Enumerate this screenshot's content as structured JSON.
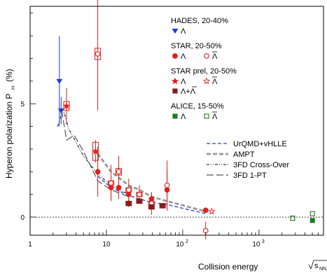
{
  "chart_data": {
    "type": "scatter",
    "title": "",
    "xlabel": "Collision energy",
    "xlabel_math": {
      "base": "s",
      "sub": "NN",
      "unit": "(GeV)"
    },
    "ylabel": "Hyperon polarization P",
    "ylabel_sub": "H",
    "ylabel_unit": "(%)",
    "xscale": "log",
    "xlim": [
      1,
      7000
    ],
    "ylim": [
      -0.8,
      9.3
    ],
    "x_ticks": [
      {
        "v": 1,
        "label": "1"
      },
      {
        "v": 10,
        "label": "10"
      },
      {
        "v": 100,
        "label": "10",
        "sup": "2"
      },
      {
        "v": 1000,
        "label": "10",
        "sup": "3"
      }
    ],
    "y_ticks": [
      {
        "v": 0,
        "label": "0"
      },
      {
        "v": 5,
        "label": "5"
      }
    ],
    "zero_line": true,
    "legend_position": "top-right",
    "legend_groups": [
      {
        "title": "HADES, 20-40%",
        "entries": [
          {
            "marker": "tri-down",
            "color": "#1a3fd6",
            "fill": true,
            "label": "Λ"
          }
        ]
      },
      {
        "title": "STAR, 20-50%",
        "entries": [
          {
            "marker": "circle",
            "color": "#e0201d",
            "fill": true,
            "label": "Λ"
          },
          {
            "marker": "circle",
            "color": "#e0201d",
            "fill": false,
            "label": "Λ",
            "bar": true
          }
        ]
      },
      {
        "title": "STAR prel, 20-50%",
        "entries": [
          {
            "marker": "star",
            "color": "#e0201d",
            "fill": true,
            "label": "Λ"
          },
          {
            "marker": "star",
            "color": "#e0201d",
            "fill": false,
            "label": "Λ",
            "bar": true
          },
          {
            "marker": "square",
            "color": "#8b1a1a",
            "fill": true,
            "label": "Λ+Λ",
            "bar_second": true
          }
        ]
      },
      {
        "title": "ALICE, 15-50%",
        "entries": [
          {
            "marker": "square",
            "color": "#1e7a1e",
            "fill": true,
            "label": "Λ"
          },
          {
            "marker": "square",
            "color": "#1e7a1e",
            "fill": false,
            "label": "Λ",
            "bar": true
          }
        ]
      }
    ],
    "model_legend": [
      {
        "name": "UrQMD+vHLLE",
        "style": "blue-dash"
      },
      {
        "name": "AMPT",
        "style": "gray-dash"
      },
      {
        "name": "3FD Cross-Over",
        "style": "dashdotdot"
      },
      {
        "name": "3FD 1-PT",
        "style": "longdash"
      }
    ],
    "series": [
      {
        "name": "HADES Λ",
        "marker": "tri-down",
        "color": "#1a3fd6",
        "fill": true,
        "points": [
          {
            "x": 2.42,
            "y": 6.0,
            "err": 2.0,
            "sys": 0
          },
          {
            "x": 2.55,
            "y": 4.7,
            "err": 0.6,
            "sys": 0
          }
        ]
      },
      {
        "name": "STAR Λ",
        "marker": "circle",
        "color": "#e0201d",
        "fill": true,
        "points": [
          {
            "x": 7.7,
            "y": 2.0,
            "err": 1.1,
            "sys": 0
          },
          {
            "x": 11.5,
            "y": 1.3,
            "err": 0.5,
            "sys": 0
          },
          {
            "x": 14.5,
            "y": 1.3,
            "err": 0.5,
            "sys": 0
          },
          {
            "x": 19.6,
            "y": 1.0,
            "err": 0.3,
            "sys": 0
          },
          {
            "x": 27,
            "y": 1.0,
            "err": 0.3,
            "sys": 0
          },
          {
            "x": 39,
            "y": 0.8,
            "err": 0.3,
            "sys": 0
          },
          {
            "x": 62.4,
            "y": 1.2,
            "err": 0.9,
            "sys": 0
          },
          {
            "x": 200,
            "y": 0.3,
            "err": 0.1,
            "sys": 0
          }
        ]
      },
      {
        "name": "STAR Λbar",
        "marker": "circle",
        "color": "#e0201d",
        "fill": false,
        "points": [
          {
            "x": 7.7,
            "y": 7.2,
            "err": 2.5,
            "sys": 0.25
          },
          {
            "x": 11.5,
            "y": 1.5,
            "err": 0.8,
            "sys": 0.1
          },
          {
            "x": 14.5,
            "y": 2.0,
            "err": 0.7,
            "sys": 0.15
          },
          {
            "x": 19.6,
            "y": 1.2,
            "err": 0.5,
            "sys": 0.1
          },
          {
            "x": 27,
            "y": 1.0,
            "err": 0.4,
            "sys": 0.1
          },
          {
            "x": 39,
            "y": 0.6,
            "err": 0.5,
            "sys": 0.1
          },
          {
            "x": 62.4,
            "y": 1.4,
            "err": 1.1,
            "sys": 0
          },
          {
            "x": 200,
            "y": -0.6,
            "err": 0.4,
            "sys": 0
          }
        ]
      },
      {
        "name": "STAR prel Λ",
        "marker": "star",
        "color": "#e0201d",
        "fill": true,
        "points": [
          {
            "x": 3.0,
            "y": 4.9,
            "err": 0.8,
            "sys": 0.2
          },
          {
            "x": 7.2,
            "y": 2.9,
            "err": 0.5,
            "sys": 0.4
          }
        ]
      },
      {
        "name": "STAR prel Λbar",
        "marker": "star",
        "color": "#e0201d",
        "fill": false,
        "points": [
          {
            "x": 240,
            "y": 0.25,
            "err": 0.1,
            "sys": 0
          }
        ]
      },
      {
        "name": "STAR prel Λ+Λbar",
        "marker": "square",
        "color": "#8b1a1a",
        "fill": true,
        "points": [
          {
            "x": 19.6,
            "y": 0.6,
            "err": 0.15,
            "sys": 0.1
          },
          {
            "x": 27,
            "y": 0.7,
            "err": 0.1,
            "sys": 0.1
          },
          {
            "x": 39,
            "y": 0.45,
            "err": 0.1,
            "sys": 0.1
          },
          {
            "x": 54.4,
            "y": 0.5,
            "err": 0.1,
            "sys": 0.1
          }
        ]
      },
      {
        "name": "ALICE Λ",
        "marker": "square",
        "color": "#1e7a1e",
        "fill": true,
        "points": [
          {
            "x": 2760,
            "y": -0.05,
            "err": 0.05,
            "sys": 0
          },
          {
            "x": 5020,
            "y": -0.15,
            "err": 0.05,
            "sys": 0
          }
        ]
      },
      {
        "name": "ALICE Λbar",
        "marker": "square",
        "color": "#1e7a1e",
        "fill": false,
        "points": [
          {
            "x": 2760,
            "y": -0.05,
            "err": 0.05,
            "sys": 0
          },
          {
            "x": 5020,
            "y": 0.15,
            "err": 0.05,
            "sys": 0
          }
        ]
      }
    ],
    "models": [
      {
        "name": "UrQMD+vHLLE",
        "style": "blue-dash",
        "x": [
          7.7,
          11.5,
          19.6,
          27,
          39,
          62.4,
          200
        ],
        "y": [
          1.8,
          1.3,
          0.95,
          0.8,
          0.65,
          0.55,
          0.15
        ]
      },
      {
        "name": "AMPT",
        "style": "gray-dash",
        "x": [
          7.7,
          11.5,
          19.6,
          27,
          39,
          62.4,
          200
        ],
        "y": [
          2.8,
          2.0,
          1.4,
          1.2,
          0.9,
          0.7,
          0.25
        ]
      },
      {
        "name": "3FD Cross-Over",
        "style": "dashdotdot",
        "x": [
          2.3,
          2.5,
          2.8,
          3.2,
          4.0,
          5.0,
          7.7,
          11.5,
          19.6
        ],
        "y": [
          4.0,
          4.4,
          4.6,
          3.9,
          3.3,
          2.7,
          1.9,
          1.4,
          1.0
        ]
      },
      {
        "name": "3FD 1-PT",
        "style": "longdash",
        "x": [
          2.6,
          3.0,
          3.8,
          5.0,
          7.7,
          11.5,
          19.6
        ],
        "y": [
          4.7,
          3.4,
          3.6,
          2.9,
          1.6,
          1.2,
          0.9
        ]
      }
    ]
  }
}
